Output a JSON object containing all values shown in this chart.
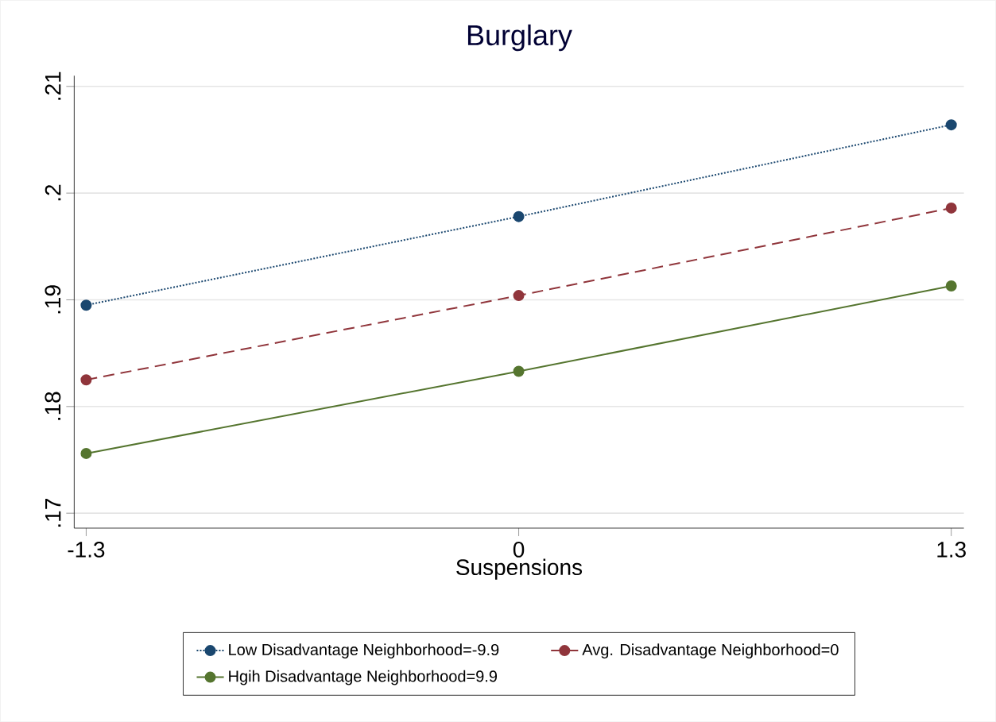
{
  "chart_data": {
    "type": "line",
    "title": "Burglary",
    "xlabel": "Suspensions",
    "x": [
      -1.3,
      0,
      1.3
    ],
    "xlim": [
      -1.336,
      1.338
    ],
    "ylim": [
      0.1686,
      0.211
    ],
    "xticks": [
      -1.3,
      0,
      1.3
    ],
    "yticks": [
      {
        "value": 0.17,
        "label": ".17"
      },
      {
        "value": 0.18,
        "label": ".18"
      },
      {
        "value": 0.19,
        "label": ".19"
      },
      {
        "value": 0.2,
        "label": ".2"
      },
      {
        "value": 0.21,
        "label": ".21"
      }
    ],
    "grid": "y",
    "legend": "bottom",
    "marker": "circle",
    "series": [
      {
        "name": "Low Disadvantage Neighborhood=-9.9",
        "color": "#1a476f",
        "line_style": "dotted",
        "values": [
          0.1895,
          0.1978,
          0.2064
        ]
      },
      {
        "name": "Avg. Disadvantage Neighborhood=0",
        "color": "#90353b",
        "line_style": "dashed",
        "values": [
          0.1825,
          0.1904,
          0.1986
        ]
      },
      {
        "name": "Hgih Disadvantage Neighborhood=9.9",
        "color": "#55752f",
        "line_style": "solid",
        "values": [
          0.1756,
          0.1833,
          0.1913
        ]
      }
    ]
  }
}
